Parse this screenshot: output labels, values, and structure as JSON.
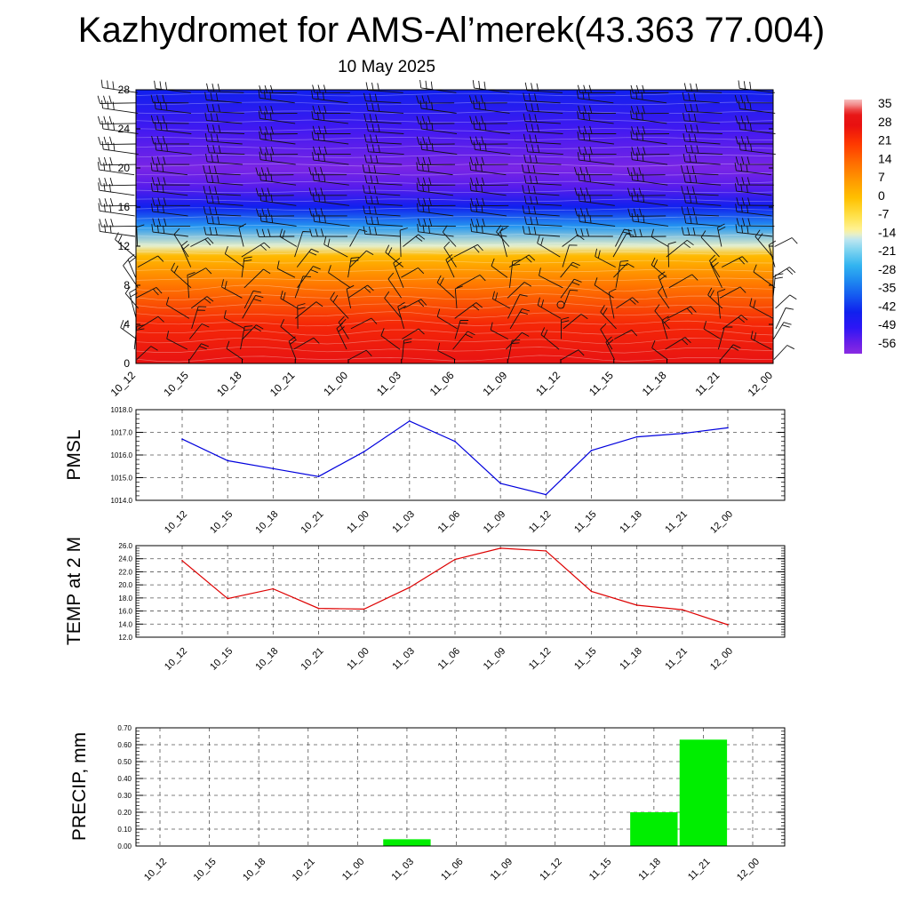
{
  "title": "Kazhydromet for AMS-Al’merek(43.363 77.004)",
  "subtitle": "10 May 2025",
  "time_labels": [
    "10_12",
    "10_15",
    "10_18",
    "10_21",
    "11_00",
    "11_03",
    "11_06",
    "11_09",
    "11_12",
    "11_15",
    "11_18",
    "11_21",
    "12_00"
  ],
  "chart_data": [
    {
      "type": "heatmap",
      "description_field": "temperature cross-section with wind barbs",
      "x": [
        "10_12",
        "10_15",
        "10_18",
        "10_21",
        "11_00",
        "11_03",
        "11_06",
        "11_09",
        "11_12",
        "11_15",
        "11_18",
        "11_21",
        "12_00"
      ],
      "y_ticks": [
        0,
        4,
        8,
        12,
        16,
        20,
        24,
        28
      ],
      "ylim": [
        0,
        28
      ],
      "colorbar": {
        "labels": [
          "35",
          "28",
          "21",
          "14",
          "7",
          "0",
          "-7",
          "-14",
          "-21",
          "-28",
          "-35",
          "-42",
          "-49",
          "-56"
        ],
        "range": [
          -60,
          38
        ]
      },
      "temperature_profile_by_level": [
        {
          "level": 0,
          "value": 30
        },
        {
          "level": 4,
          "value": 24
        },
        {
          "level": 8,
          "value": 12
        },
        {
          "level": 11,
          "value": 1
        },
        {
          "level": 12,
          "value": -14
        },
        {
          "level": 14,
          "value": -30
        },
        {
          "level": 16,
          "value": -44
        },
        {
          "level": 18,
          "value": -54
        },
        {
          "level": 20,
          "value": -58
        },
        {
          "level": 24,
          "value": -52
        },
        {
          "level": 28,
          "value": -44
        }
      ],
      "grid": false
    },
    {
      "type": "line",
      "ylabel": "PMSL",
      "x": [
        "10_12",
        "10_15",
        "10_18",
        "10_21",
        "11_00",
        "11_03",
        "11_06",
        "11_09",
        "11_12",
        "11_15",
        "11_18",
        "11_21",
        "12_00"
      ],
      "values": [
        1016.7,
        1015.75,
        1015.4,
        1015.05,
        1016.15,
        1017.5,
        1016.6,
        1014.75,
        1014.25,
        1016.2,
        1016.8,
        1016.95,
        1017.2
      ],
      "ylim": [
        1014.0,
        1018.0
      ],
      "y_ticks": [
        "1014.0",
        "1015.0",
        "1016.0",
        "1017.0",
        "1018.0"
      ],
      "color": "#0000dd",
      "grid": true
    },
    {
      "type": "line",
      "ylabel": "TEMP at 2 M",
      "x": [
        "10_12",
        "10_15",
        "10_18",
        "10_21",
        "11_00",
        "11_03",
        "11_06",
        "11_09",
        "11_12",
        "11_15",
        "11_18",
        "11_21",
        "12_00"
      ],
      "values": [
        23.7,
        17.9,
        19.4,
        16.4,
        16.3,
        19.6,
        23.9,
        25.6,
        25.2,
        19.0,
        16.9,
        16.2,
        13.9
      ],
      "ylim": [
        12.0,
        26.0
      ],
      "y_ticks": [
        "12.0",
        "14.0",
        "16.0",
        "18.0",
        "20.0",
        "22.0",
        "24.0",
        "26.0"
      ],
      "color": "#dd0000",
      "grid": true
    },
    {
      "type": "bar",
      "ylabel": "PRECIP, mm",
      "categories": [
        "10_12",
        "10_15",
        "10_18",
        "10_21",
        "11_00",
        "11_03",
        "11_06",
        "11_09",
        "11_12",
        "11_15",
        "11_18",
        "11_21",
        "12_00"
      ],
      "values": [
        0,
        0,
        0,
        0,
        0,
        0.04,
        0,
        0,
        0,
        0,
        0.2,
        0.63,
        0
      ],
      "ylim": [
        0.0,
        0.7
      ],
      "y_ticks": [
        "0.00",
        "0.10",
        "0.20",
        "0.30",
        "0.40",
        "0.50",
        "0.60",
        "0.70"
      ],
      "color": "#00ee00",
      "grid": true
    }
  ]
}
